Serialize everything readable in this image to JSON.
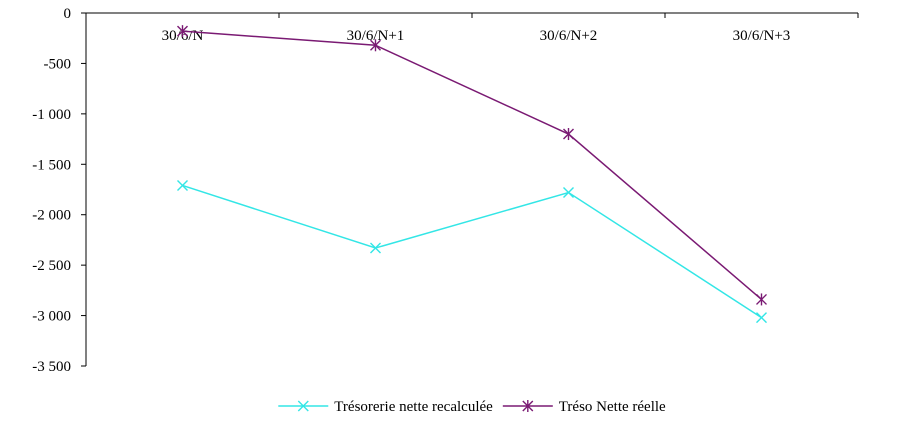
{
  "chart_data": {
    "type": "line",
    "title": "",
    "xlabel": "",
    "ylabel": "",
    "categories": [
      "30/6/N",
      "30/6/N+1",
      "30/6/N+2",
      "30/6/N+3"
    ],
    "ylim": [
      -3500,
      0
    ],
    "y_ticks": [
      0,
      -500,
      -1000,
      -1500,
      -2000,
      -2500,
      -3000,
      -3500
    ],
    "y_tick_labels": [
      "0",
      "-500",
      "-1 000",
      "-1 500",
      "-2 000",
      "-2 500",
      "-3 000",
      "-3 500"
    ],
    "x_axis_position": "top",
    "grid": false,
    "legend_position": "bottom",
    "series": [
      {
        "name": "Trésorerie nette recalculée",
        "color": "#33e6e6",
        "marker": "x",
        "values": [
          -1710,
          -2330,
          -1780,
          -3020
        ]
      },
      {
        "name": "Tréso Nette réelle",
        "color": "#7a1a73",
        "marker": "asterisk",
        "values": [
          -180,
          -320,
          -1200,
          -2840
        ]
      }
    ]
  }
}
